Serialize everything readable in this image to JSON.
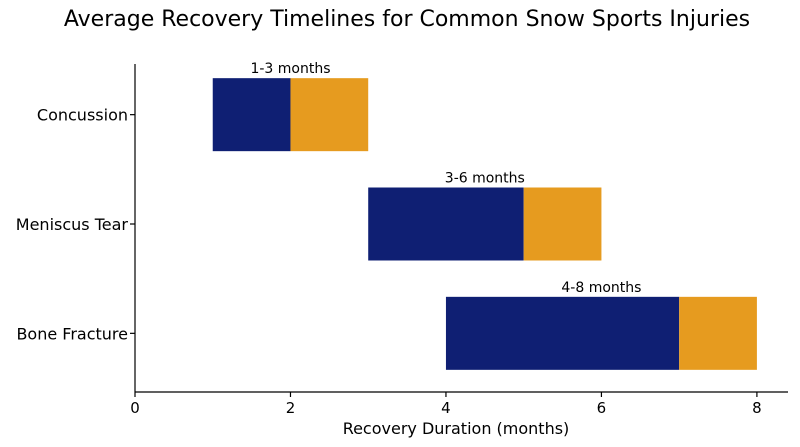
{
  "chart_data": {
    "type": "bar",
    "orientation": "horizontal",
    "stacked": true,
    "title": "Average Recovery Timelines for Common Snow Sports Injuries",
    "xlabel": "Recovery Duration (months)",
    "ylabel": "",
    "xlim": [
      0,
      8.4
    ],
    "xticks": [
      0,
      2,
      4,
      6,
      8
    ],
    "grid": false,
    "categories": [
      "Concussion",
      "Meniscus Tear",
      "Bone Fracture"
    ],
    "bars": [
      {
        "category": "Concussion",
        "start": 1,
        "split": 2,
        "end": 3,
        "label": "1-3 months"
      },
      {
        "category": "Meniscus Tear",
        "start": 3,
        "split": 5,
        "end": 6,
        "label": "3-6 months"
      },
      {
        "category": "Bone Fracture",
        "start": 4,
        "split": 7,
        "end": 8,
        "label": "4-8 months"
      }
    ],
    "colors": {
      "primary": "#0f1f73",
      "secondary": "#e69b1f"
    }
  }
}
